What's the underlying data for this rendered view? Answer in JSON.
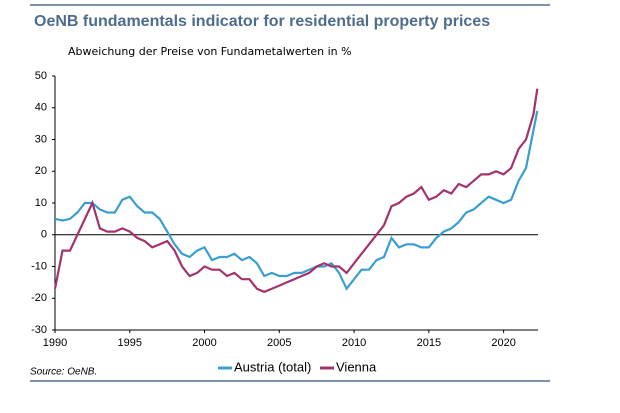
{
  "chart_data": {
    "type": "line",
    "title": "OeNB fundamentals indicator for residential property prices",
    "subtitle": "Abweichung der Preise von Fundametalwerten in %",
    "source": "Source: OeNB.",
    "x": [
      1990,
      1990.5,
      1991,
      1991.5,
      1992,
      1992.5,
      1993,
      1993.5,
      1994,
      1994.5,
      1995,
      1995.5,
      1996,
      1996.5,
      1997,
      1997.5,
      1998,
      1998.5,
      1999,
      1999.5,
      2000,
      2000.5,
      2001,
      2001.5,
      2002,
      2002.5,
      2003,
      2003.5,
      2004,
      2004.5,
      2005,
      2005.5,
      2006,
      2006.5,
      2007,
      2007.5,
      2008,
      2008.5,
      2009,
      2009.5,
      2010,
      2010.5,
      2011,
      2011.5,
      2012,
      2012.5,
      2013,
      2013.5,
      2014,
      2014.5,
      2015,
      2015.5,
      2016,
      2016.5,
      2017,
      2017.5,
      2018,
      2018.5,
      2019,
      2019.5,
      2020,
      2020.5,
      2021,
      2021.5,
      2022,
      2022.25
    ],
    "series": [
      {
        "name": "Austria (total)",
        "color": "#3a9fd0",
        "values": [
          5,
          4.5,
          5,
          7,
          10,
          10,
          8,
          7,
          7,
          11,
          12,
          9,
          7,
          7,
          5,
          1,
          -3,
          -6,
          -7,
          -5,
          -4,
          -8,
          -7,
          -7,
          -6,
          -8,
          -7,
          -9,
          -13,
          -12,
          -13,
          -13,
          -12,
          -12,
          -11,
          -10,
          -10,
          -9,
          -12,
          -17,
          -14,
          -11,
          -11,
          -8,
          -7,
          -1,
          -4,
          -3,
          -3,
          -4,
          -4,
          -1,
          1,
          2,
          4,
          7,
          8,
          10,
          12,
          11,
          10,
          11,
          17,
          21,
          33,
          39
        ]
      },
      {
        "name": "Vienna",
        "color": "#a3336e",
        "values": [
          -17,
          -5,
          -5,
          0,
          5,
          10,
          2,
          1,
          1,
          2,
          1,
          -1,
          -2,
          -4,
          -3,
          -2,
          -5,
          -10,
          -13,
          -12,
          -10,
          -11,
          -11,
          -13,
          -12,
          -14,
          -14,
          -17,
          -18,
          -17,
          -16,
          -15,
          -14,
          -13,
          -12,
          -10,
          -9,
          -10,
          -10,
          -12,
          -9,
          -6,
          -3,
          0,
          3,
          9,
          10,
          12,
          13,
          15,
          11,
          12,
          14,
          13,
          16,
          15,
          17,
          19,
          19,
          20,
          19,
          21,
          27,
          30,
          38,
          46
        ]
      }
    ],
    "xlim": [
      1990,
      2022.3
    ],
    "xticks": [
      1990,
      1995,
      2000,
      2005,
      2010,
      2015,
      2020
    ],
    "ylim": [
      -30,
      50
    ],
    "yticks": [
      -30,
      -20,
      -10,
      0,
      10,
      20,
      30,
      40,
      50
    ]
  }
}
